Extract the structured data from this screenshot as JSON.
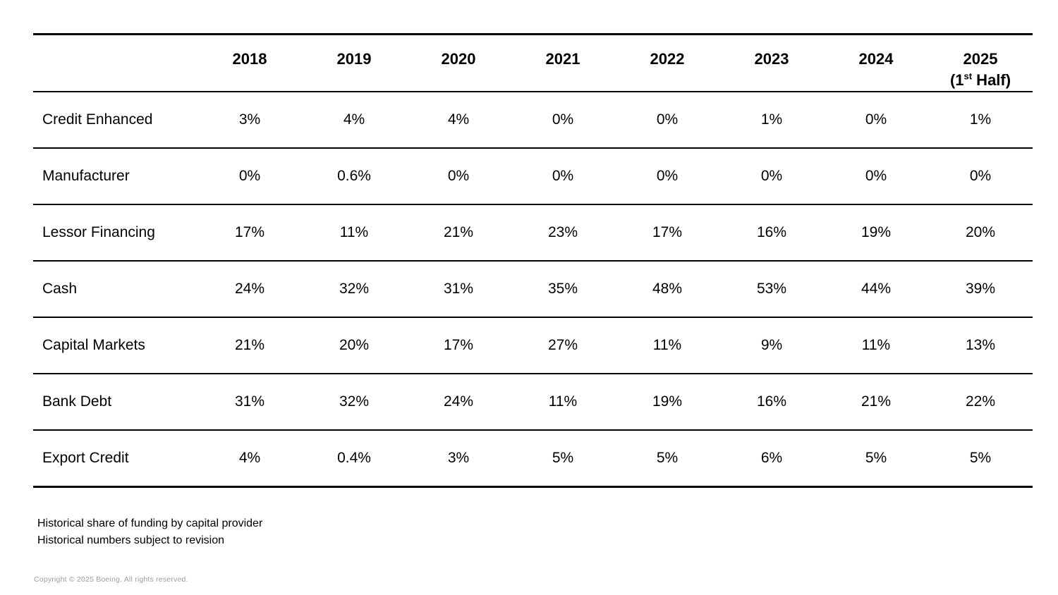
{
  "colors": {
    "background": "#ffffff",
    "text": "#000000",
    "rule": "#000000",
    "muted_text": "#9aa0a8"
  },
  "header": {
    "years": [
      "2018",
      "2019",
      "2020",
      "2021",
      "2022",
      "2023",
      "2024"
    ],
    "last": {
      "line1": "2025",
      "pre": "(1",
      "sup": "st",
      "post": " Half)"
    }
  },
  "footnotes": [
    "Historical share of funding by capital provider",
    "Historical numbers subject to revision"
  ],
  "copyright": "Copyright © 2025 Boeing. All rights reserved.",
  "chart_data": {
    "type": "table",
    "title": "Historical share of funding by capital provider",
    "categories": [
      "2018",
      "2019",
      "2020",
      "2021",
      "2022",
      "2023",
      "2024",
      "2025 (1st Half)"
    ],
    "series": [
      {
        "name": "Credit Enhanced",
        "values": [
          "3%",
          "4%",
          "4%",
          "0%",
          "0%",
          "1%",
          "0%",
          "1%"
        ]
      },
      {
        "name": "Manufacturer",
        "values": [
          "0%",
          "0.6%",
          "0%",
          "0%",
          "0%",
          "0%",
          "0%",
          "0%"
        ]
      },
      {
        "name": "Lessor Financing",
        "values": [
          "17%",
          "11%",
          "21%",
          "23%",
          "17%",
          "16%",
          "19%",
          "20%"
        ]
      },
      {
        "name": "Cash",
        "values": [
          "24%",
          "32%",
          "31%",
          "35%",
          "48%",
          "53%",
          "44%",
          "39%"
        ]
      },
      {
        "name": "Capital Markets",
        "values": [
          "21%",
          "20%",
          "17%",
          "27%",
          "11%",
          "9%",
          "11%",
          "13%"
        ]
      },
      {
        "name": "Bank Debt",
        "values": [
          "31%",
          "32%",
          "24%",
          "11%",
          "19%",
          "16%",
          "21%",
          "22%"
        ]
      },
      {
        "name": "Export Credit",
        "values": [
          "4%",
          "0.4%",
          "3%",
          "5%",
          "5%",
          "6%",
          "5%",
          "5%"
        ]
      }
    ],
    "notes": [
      "Historical share of funding by capital provider",
      "Historical numbers subject to revision"
    ],
    "legend_position": "none",
    "grid": "horizontal-rules-only"
  }
}
